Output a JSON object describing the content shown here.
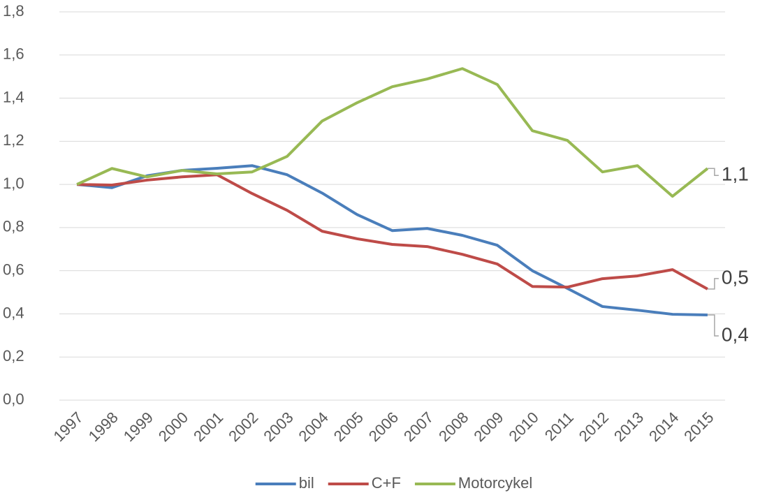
{
  "chart_data": {
    "type": "line",
    "categories": [
      "1997",
      "1998",
      "1999",
      "2000",
      "2001",
      "2002",
      "2003",
      "2004",
      "2005",
      "2006",
      "2007",
      "2008",
      "2009",
      "2010",
      "2011",
      "2012",
      "2013",
      "2014",
      "2015"
    ],
    "series": [
      {
        "name": "bil",
        "color": "#4a7ebb",
        "values": [
          1.0,
          0.985,
          1.04,
          1.065,
          1.075,
          1.087,
          1.045,
          0.96,
          0.86,
          0.786,
          0.796,
          0.764,
          0.718,
          0.6,
          0.518,
          0.434,
          0.417,
          0.398,
          0.395
        ],
        "value_labels": [
          null,
          null,
          null,
          null,
          null,
          null,
          null,
          null,
          null,
          null,
          null,
          null,
          null,
          null,
          null,
          null,
          null,
          null,
          "0,4"
        ]
      },
      {
        "name": "C+F",
        "color": "#be4b48",
        "values": [
          1.0,
          0.997,
          1.02,
          1.035,
          1.045,
          0.958,
          0.88,
          0.783,
          0.748,
          0.722,
          0.712,
          0.676,
          0.631,
          0.527,
          0.524,
          0.563,
          0.576,
          0.605,
          0.515
        ],
        "value_labels": [
          null,
          null,
          null,
          null,
          null,
          null,
          null,
          null,
          null,
          null,
          null,
          null,
          null,
          null,
          null,
          null,
          null,
          null,
          "0,5"
        ]
      },
      {
        "name": "Motorcykel",
        "color": "#98b954",
        "values": [
          1.0,
          1.074,
          1.035,
          1.065,
          1.049,
          1.058,
          1.13,
          1.294,
          1.379,
          1.453,
          1.489,
          1.537,
          1.463,
          1.249,
          1.204,
          1.058,
          1.087,
          0.945,
          1.074
        ],
        "value_labels": [
          null,
          null,
          null,
          null,
          null,
          null,
          null,
          null,
          null,
          null,
          null,
          null,
          null,
          null,
          null,
          null,
          null,
          null,
          "1,1"
        ]
      }
    ],
    "ylim": [
      0,
      1.8
    ],
    "yticks": [
      {
        "value": 0,
        "label": "0,0"
      },
      {
        "value": 0.2,
        "label": "0,2"
      },
      {
        "value": 0.4,
        "label": "0,4"
      },
      {
        "value": 0.6,
        "label": "0,6"
      },
      {
        "value": 0.8,
        "label": "0,8"
      },
      {
        "value": 1.0,
        "label": "1,0"
      },
      {
        "value": 1.2,
        "label": "1,2"
      },
      {
        "value": 1.4,
        "label": "1,4"
      },
      {
        "value": 1.6,
        "label": "1,6"
      },
      {
        "value": 1.8,
        "label": "1,8"
      }
    ],
    "grid": true,
    "legend": "bottom"
  }
}
